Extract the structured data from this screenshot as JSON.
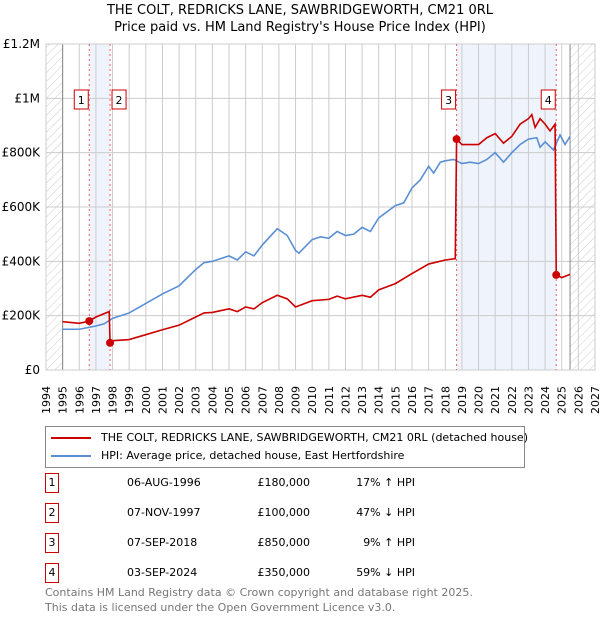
{
  "chart_data": {
    "type": "line",
    "title": "THE COLT, REDRICKS LANE, SAWBRIDGEWORTH, CM21 0RL",
    "subtitle": "Price paid vs. HM Land Registry's House Price Index (HPI)",
    "xlim": [
      1994,
      2027
    ],
    "ylim": [
      0,
      1200000
    ],
    "x_ticks": [
      "1994",
      "1995",
      "1996",
      "1997",
      "1998",
      "1999",
      "2000",
      "2001",
      "2002",
      "2003",
      "2004",
      "2005",
      "2006",
      "2007",
      "2008",
      "2009",
      "2010",
      "2011",
      "2012",
      "2013",
      "2014",
      "2015",
      "2016",
      "2017",
      "2018",
      "2019",
      "2020",
      "2021",
      "2022",
      "2023",
      "2024",
      "2025",
      "2026",
      "2027"
    ],
    "y_ticks": [
      {
        "v": 0,
        "label": "£0"
      },
      {
        "v": 200000,
        "label": "£200K"
      },
      {
        "v": 400000,
        "label": "£400K"
      },
      {
        "v": 600000,
        "label": "£600K"
      },
      {
        "v": 800000,
        "label": "£800K"
      },
      {
        "v": 1000000,
        "label": "£1M"
      },
      {
        "v": 1200000,
        "label": "£1.2M"
      }
    ],
    "data_range": [
      1995,
      2025.5
    ],
    "series": [
      {
        "name": "THE COLT, REDRICKS LANE, SAWBRIDGEWORTH, CM21 0RL (detached house)",
        "color": "#cc0000",
        "points": [
          [
            1995,
            178000
          ],
          [
            1996,
            172000
          ],
          [
            1996.6,
            180000
          ],
          [
            1997,
            195000
          ],
          [
            1997.8,
            215000
          ],
          [
            1997.85,
            100000
          ],
          [
            1998,
            108000
          ],
          [
            1999,
            112000
          ],
          [
            2000,
            130000
          ],
          [
            2001,
            148000
          ],
          [
            2002,
            165000
          ],
          [
            2003,
            195000
          ],
          [
            2003.5,
            210000
          ],
          [
            2004,
            212000
          ],
          [
            2005,
            225000
          ],
          [
            2005.5,
            215000
          ],
          [
            2006,
            232000
          ],
          [
            2006.5,
            225000
          ],
          [
            2007,
            248000
          ],
          [
            2007.9,
            275000
          ],
          [
            2008.5,
            262000
          ],
          [
            2009,
            232000
          ],
          [
            2010,
            255000
          ],
          [
            2011,
            260000
          ],
          [
            2011.5,
            272000
          ],
          [
            2012,
            262000
          ],
          [
            2013,
            275000
          ],
          [
            2013.5,
            268000
          ],
          [
            2014,
            295000
          ],
          [
            2015,
            318000
          ],
          [
            2016,
            355000
          ],
          [
            2017,
            390000
          ],
          [
            2018,
            405000
          ],
          [
            2018.6,
            410000
          ],
          [
            2018.68,
            850000
          ],
          [
            2019,
            830000
          ],
          [
            2020,
            830000
          ],
          [
            2020.5,
            855000
          ],
          [
            2021,
            870000
          ],
          [
            2021.5,
            835000
          ],
          [
            2022,
            860000
          ],
          [
            2022.5,
            905000
          ],
          [
            2023,
            925000
          ],
          [
            2023.2,
            940000
          ],
          [
            2023.4,
            893000
          ],
          [
            2023.7,
            925000
          ],
          [
            2024,
            905000
          ],
          [
            2024.3,
            880000
          ],
          [
            2024.6,
            905000
          ],
          [
            2024.67,
            350000
          ],
          [
            2025,
            340000
          ],
          [
            2025.5,
            352000
          ]
        ]
      },
      {
        "name": "HPI: Average price, detached house, East Hertfordshire",
        "color": "#5b8fd4",
        "points": [
          [
            1995,
            150000
          ],
          [
            1996,
            150000
          ],
          [
            1997,
            162000
          ],
          [
            1997.5,
            170000
          ],
          [
            1998,
            190000
          ],
          [
            1999,
            210000
          ],
          [
            2000,
            245000
          ],
          [
            2001,
            280000
          ],
          [
            2002,
            310000
          ],
          [
            2003,
            370000
          ],
          [
            2003.5,
            395000
          ],
          [
            2004,
            400000
          ],
          [
            2005,
            420000
          ],
          [
            2005.5,
            405000
          ],
          [
            2006,
            435000
          ],
          [
            2006.5,
            420000
          ],
          [
            2007,
            460000
          ],
          [
            2007.9,
            520000
          ],
          [
            2008.5,
            495000
          ],
          [
            2009,
            440000
          ],
          [
            2009.2,
            430000
          ],
          [
            2010,
            480000
          ],
          [
            2010.5,
            490000
          ],
          [
            2011,
            485000
          ],
          [
            2011.5,
            510000
          ],
          [
            2012,
            495000
          ],
          [
            2012.5,
            500000
          ],
          [
            2013,
            525000
          ],
          [
            2013.5,
            510000
          ],
          [
            2014,
            560000
          ],
          [
            2015,
            605000
          ],
          [
            2015.5,
            615000
          ],
          [
            2016,
            670000
          ],
          [
            2016.5,
            700000
          ],
          [
            2017,
            750000
          ],
          [
            2017.3,
            725000
          ],
          [
            2017.7,
            765000
          ],
          [
            2018,
            770000
          ],
          [
            2018.5,
            775000
          ],
          [
            2019,
            760000
          ],
          [
            2019.5,
            765000
          ],
          [
            2020,
            760000
          ],
          [
            2020.5,
            775000
          ],
          [
            2021,
            800000
          ],
          [
            2021.5,
            765000
          ],
          [
            2022,
            800000
          ],
          [
            2022.5,
            830000
          ],
          [
            2023,
            850000
          ],
          [
            2023.5,
            855000
          ],
          [
            2023.7,
            820000
          ],
          [
            2024,
            840000
          ],
          [
            2024.5,
            810000
          ],
          [
            2024.9,
            865000
          ],
          [
            2025.2,
            830000
          ],
          [
            2025.5,
            860000
          ]
        ]
      }
    ],
    "sales": [
      {
        "n": "1",
        "x": 1996.6,
        "y": 180000,
        "date": "06-AUG-1996",
        "price": "£180,000",
        "hpi": "17% ↑ HPI"
      },
      {
        "n": "2",
        "x": 1997.85,
        "y": 100000,
        "date": "07-NOV-1997",
        "price": "£100,000",
        "hpi": "47% ↓ HPI"
      },
      {
        "n": "3",
        "x": 2018.68,
        "y": 850000,
        "date": "07-SEP-2018",
        "price": "£850,000",
        "hpi": "9% ↑ HPI"
      },
      {
        "n": "4",
        "x": 2024.67,
        "y": 350000,
        "date": "03-SEP-2024",
        "price": "£350,000",
        "hpi": "59% ↓ HPI"
      }
    ]
  },
  "legend": {
    "red": "THE COLT, REDRICKS LANE, SAWBRIDGEWORTH, CM21 0RL (detached house)",
    "blue": "HPI: Average price, detached house, East Hertfordshire"
  },
  "footer": {
    "line1": "Contains HM Land Registry data © Crown copyright and database right 2025.",
    "line2": "This data is licensed under the Open Government Licence v3.0."
  }
}
